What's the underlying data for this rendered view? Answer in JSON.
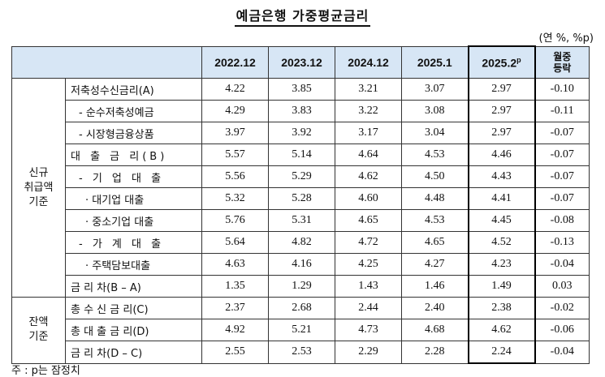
{
  "title": "예금은행 가중평균금리",
  "unit": "(연 %, %p)",
  "footnote": "주 : p는 잠정치",
  "header": {
    "cols": [
      "2022.12",
      "2023.12",
      "2024.12",
      "2025.1"
    ],
    "latest_main": "2025.2",
    "latest_sup": "p",
    "change_line1": "월중",
    "change_line2": "등락"
  },
  "groups": {
    "new_line1": "신규",
    "new_line2": "취급액",
    "new_line3": "기준",
    "bal_line1": "잔액",
    "bal_line2": "기준"
  },
  "rows": [
    {
      "label": "저축성수신금리(A)",
      "v": [
        "4.22",
        "3.85",
        "3.21",
        "3.07",
        "2.97",
        "-0.10"
      ]
    },
    {
      "label": "- 순수저축성예금",
      "v": [
        "4.29",
        "3.83",
        "3.22",
        "3.08",
        "2.97",
        "-0.11"
      ]
    },
    {
      "label": "- 시장형금융상품",
      "v": [
        "3.97",
        "3.92",
        "3.17",
        "3.04",
        "2.97",
        "-0.07"
      ]
    },
    {
      "label": "대 출 금 리(B)",
      "v": [
        "5.57",
        "5.14",
        "4.64",
        "4.53",
        "4.46",
        "-0.07"
      ]
    },
    {
      "label": "- 기 업 대 출",
      "v": [
        "5.56",
        "5.29",
        "4.62",
        "4.50",
        "4.43",
        "-0.07"
      ]
    },
    {
      "label": "· 대기업 대출",
      "v": [
        "5.32",
        "5.28",
        "4.60",
        "4.48",
        "4.41",
        "-0.07"
      ]
    },
    {
      "label": "· 중소기업 대출",
      "v": [
        "5.76",
        "5.31",
        "4.65",
        "4.53",
        "4.45",
        "-0.08"
      ]
    },
    {
      "label": "- 가 계 대 출",
      "v": [
        "5.64",
        "4.82",
        "4.72",
        "4.65",
        "4.52",
        "-0.13"
      ]
    },
    {
      "label": "· 주택담보대출",
      "v": [
        "4.63",
        "4.16",
        "4.25",
        "4.27",
        "4.23",
        "-0.04"
      ]
    },
    {
      "label": "금 리 차(B – A)",
      "v": [
        "1.35",
        "1.29",
        "1.43",
        "1.46",
        "1.49",
        "0.03"
      ]
    },
    {
      "label": "총 수 신 금 리(C)",
      "v": [
        "2.37",
        "2.68",
        "2.44",
        "2.40",
        "2.38",
        "-0.02"
      ]
    },
    {
      "label": "총 대 출 금 리(D)",
      "v": [
        "4.92",
        "5.21",
        "4.73",
        "4.68",
        "4.62",
        "-0.06"
      ]
    },
    {
      "label": "금 리 차(D – C)",
      "v": [
        "2.55",
        "2.53",
        "2.29",
        "2.28",
        "2.24",
        "-0.04"
      ]
    }
  ]
}
